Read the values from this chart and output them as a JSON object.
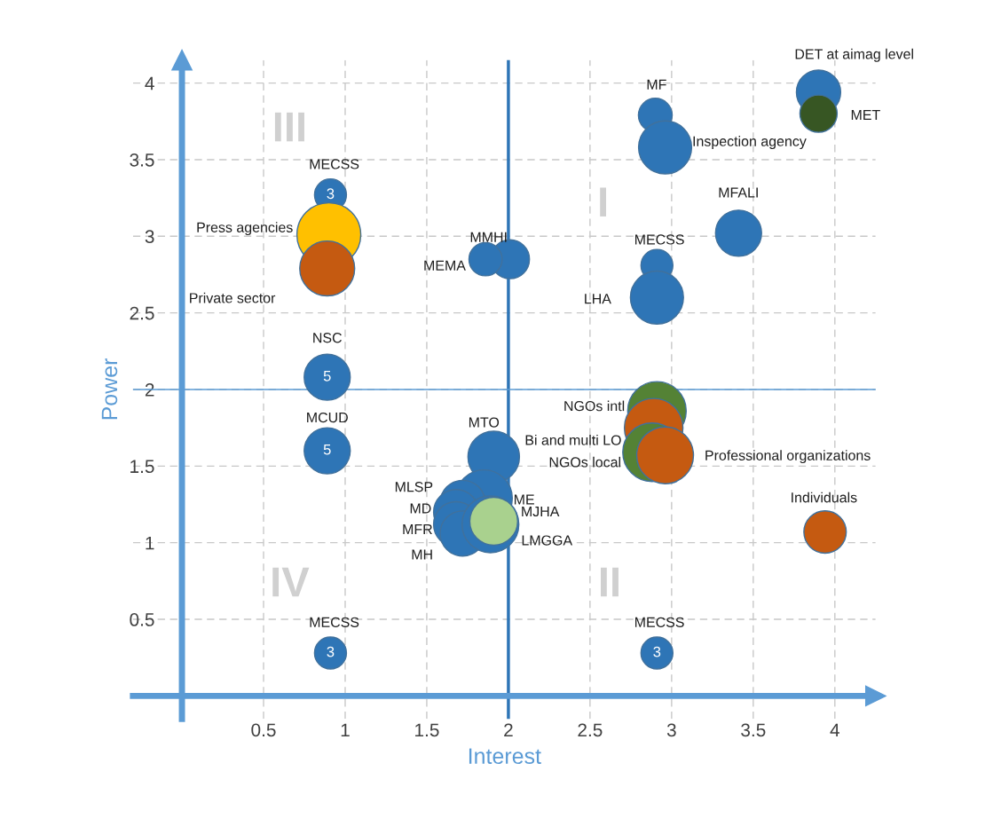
{
  "chart_data": {
    "type": "bubble",
    "xlabel": "Interest",
    "ylabel": "Power",
    "xlim": [
      -0.3,
      4.25
    ],
    "ylim": [
      -0.15,
      4.15
    ],
    "xticks": [
      0.5,
      1,
      1.5,
      2,
      2.5,
      3,
      3.5,
      4
    ],
    "yticks": [
      0.5,
      1,
      1.5,
      2,
      2.5,
      3,
      3.5,
      4
    ],
    "grid": true,
    "marker": "circle",
    "legend": false,
    "ref_lines": [
      {
        "axis": "x",
        "value": 2,
        "color": "#2e75b6"
      },
      {
        "axis": "y",
        "value": 2,
        "color": "#5b9bd5"
      }
    ],
    "annotations": [
      "III",
      "I",
      "IV",
      "II",
      {
        "text": "3",
        "x": 0.91,
        "y": 3.27
      },
      {
        "text": "5",
        "x": 0.89,
        "y": 2.08
      },
      {
        "text": "5",
        "x": 0.89,
        "y": 1.6
      },
      {
        "text": "3",
        "x": 0.91,
        "y": 0.28
      },
      {
        "text": "3",
        "x": 2.91,
        "y": 0.28
      }
    ],
    "series": [
      {
        "name": "MECSS",
        "color": "#2e75b6",
        "x": [
          0.91
        ],
        "values": [
          3.27
        ],
        "sizes": [
          0.25
        ]
      },
      {
        "name": "Press agencies",
        "color": "#ffc000",
        "x": [
          0.9
        ],
        "values": [
          3.01
        ],
        "sizes": [
          1
        ]
      },
      {
        "name": "Private sector",
        "color": "#c55a11",
        "x": [
          0.89
        ],
        "values": [
          2.79
        ],
        "sizes": [
          0.74
        ]
      },
      {
        "name": "NSC",
        "color": "#2e75b6",
        "x": [
          0.89
        ],
        "values": [
          2.08
        ],
        "sizes": [
          0.52
        ]
      },
      {
        "name": "MCUD",
        "color": "#2e75b6",
        "x": [
          0.89
        ],
        "values": [
          1.6
        ],
        "sizes": [
          0.52
        ]
      },
      {
        "name": "MECSS",
        "color": "#2e75b6",
        "x": [
          0.91
        ],
        "values": [
          0.28
        ],
        "sizes": [
          0.25
        ]
      },
      {
        "name": "MMHI",
        "color": "#2e75b6",
        "x": [
          2.01
        ],
        "values": [
          2.85
        ],
        "sizes": [
          0.37
        ]
      },
      {
        "name": "MEMA",
        "color": "#2e75b6",
        "x": [
          1.86
        ],
        "values": [
          2.85
        ],
        "sizes": [
          0.27
        ]
      },
      {
        "name": "MTO",
        "color": "#2e75b6",
        "x": [
          1.91
        ],
        "values": [
          1.56
        ],
        "sizes": [
          0.65
        ]
      },
      {
        "name": "ME",
        "color": "#2e75b6",
        "x": [
          1.85
        ],
        "values": [
          1.29
        ],
        "sizes": [
          0.79
        ]
      },
      {
        "name": "MLSP",
        "color": "#2e75b6",
        "x": [
          1.72
        ],
        "values": [
          1.26
        ],
        "sizes": [
          0.5
        ]
      },
      {
        "name": "MD",
        "color": "#2e75b6",
        "x": [
          1.68
        ],
        "values": [
          1.2
        ],
        "sizes": [
          0.5
        ]
      },
      {
        "name": "MFR",
        "color": "#2e75b6",
        "x": [
          1.68
        ],
        "values": [
          1.12
        ],
        "sizes": [
          0.5
        ]
      },
      {
        "name": "MH",
        "color": "#2e75b6",
        "x": [
          1.72
        ],
        "values": [
          1.06
        ],
        "sizes": [
          0.5
        ]
      },
      {
        "name": "LMGGA",
        "color": "#2e75b6",
        "x": [
          1.89
        ],
        "values": [
          1.12
        ],
        "sizes": [
          0.79
        ]
      },
      {
        "name": "MJHA",
        "color": "#a9d18e",
        "x": [
          1.91
        ],
        "values": [
          1.14
        ],
        "sizes": [
          0.56
        ]
      },
      {
        "name": "MF",
        "color": "#2e75b6",
        "x": [
          2.9
        ],
        "values": [
          3.79
        ],
        "sizes": [
          0.28
        ]
      },
      {
        "name": "Inspection agency",
        "color": "#2e75b6",
        "x": [
          2.96
        ],
        "values": [
          3.58
        ],
        "sizes": [
          0.69
        ]
      },
      {
        "name": "DET at aimag level",
        "color": "#2e75b6",
        "x": [
          3.9
        ],
        "values": [
          3.94
        ],
        "sizes": [
          0.48
        ]
      },
      {
        "name": "MET",
        "color": "#375623",
        "x": [
          3.9
        ],
        "values": [
          3.8
        ],
        "sizes": [
          0.34
        ]
      },
      {
        "name": "MFALI",
        "color": "#2e75b6",
        "x": [
          3.41
        ],
        "values": [
          3.02
        ],
        "sizes": [
          0.52
        ]
      },
      {
        "name": "MECSS",
        "color": "#2e75b6",
        "x": [
          2.91
        ],
        "values": [
          2.81
        ],
        "sizes": [
          0.25
        ]
      },
      {
        "name": "LHA",
        "color": "#2e75b6",
        "x": [
          2.91
        ],
        "values": [
          2.6
        ],
        "sizes": [
          0.69
        ]
      },
      {
        "name": "NGOs intl",
        "color": "#548235",
        "x": [
          2.91
        ],
        "values": [
          1.86
        ],
        "sizes": [
          0.84
        ]
      },
      {
        "name": "Bi and multi LO",
        "color": "#c55a11",
        "x": [
          2.89
        ],
        "values": [
          1.75
        ],
        "sizes": [
          0.84
        ]
      },
      {
        "name": "NGOs local",
        "color": "#548235",
        "x": [
          2.88
        ],
        "values": [
          1.59
        ],
        "sizes": [
          0.84
        ]
      },
      {
        "name": "Professional organizations",
        "color": "#c55a11",
        "x": [
          2.96
        ],
        "values": [
          1.57
        ],
        "sizes": [
          0.79
        ]
      },
      {
        "name": "Individuals",
        "color": "#c55a11",
        "x": [
          3.94
        ],
        "values": [
          1.07
        ],
        "sizes": [
          0.44
        ]
      },
      {
        "name": "MECSS",
        "color": "#2e75b6",
        "x": [
          2.91
        ],
        "values": [
          0.28
        ],
        "sizes": [
          0.25
        ]
      }
    ]
  }
}
